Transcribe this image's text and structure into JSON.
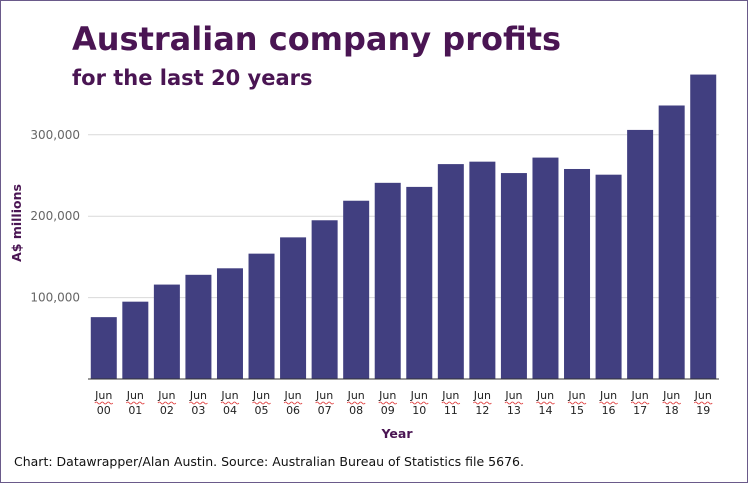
{
  "chart_data": {
    "type": "bar",
    "title": "Australian company profits",
    "subtitle": "for the last 20 years",
    "xlabel": "Year",
    "ylabel": "A$ millions",
    "categories": [
      "Jun 00",
      "Jun 01",
      "Jun 02",
      "Jun 03",
      "Jun 04",
      "Jun 05",
      "Jun 06",
      "Jun 07",
      "Jun 08",
      "Jun 09",
      "Jun 10",
      "Jun 11",
      "Jun 12",
      "Jun 13",
      "Jun 14",
      "Jun 15",
      "Jun 16",
      "Jun 17",
      "Jun 18",
      "Jun 19"
    ],
    "category_lines": [
      [
        "Jun",
        "00"
      ],
      [
        "Jun",
        "01"
      ],
      [
        "Jun",
        "02"
      ],
      [
        "Jun",
        "03"
      ],
      [
        "Jun",
        "04"
      ],
      [
        "Jun",
        "05"
      ],
      [
        "Jun",
        "06"
      ],
      [
        "Jun",
        "07"
      ],
      [
        "Jun",
        "08"
      ],
      [
        "Jun",
        "09"
      ],
      [
        "Jun",
        "10"
      ],
      [
        "Jun",
        "11"
      ],
      [
        "Jun",
        "12"
      ],
      [
        "Jun",
        "13"
      ],
      [
        "Jun",
        "14"
      ],
      [
        "Jun",
        "15"
      ],
      [
        "Jun",
        "16"
      ],
      [
        "Jun",
        "17"
      ],
      [
        "Jun",
        "18"
      ],
      [
        "Jun",
        "19"
      ]
    ],
    "values": [
      76000,
      95000,
      116000,
      128000,
      136000,
      154000,
      174000,
      195000,
      219000,
      241000,
      236000,
      264000,
      267000,
      253000,
      272000,
      258000,
      251000,
      306000,
      336000,
      374000
    ],
    "ylim": [
      0,
      380000
    ],
    "yticks": [
      100000,
      200000,
      300000
    ],
    "ytick_labels": [
      "100,000",
      "200,000",
      "300,000"
    ],
    "grid": true,
    "bar_color": "#413f80"
  },
  "footer": "Chart: Datawrapper/Alan Austin. Source: Australian Bureau of Statistics file 5676."
}
